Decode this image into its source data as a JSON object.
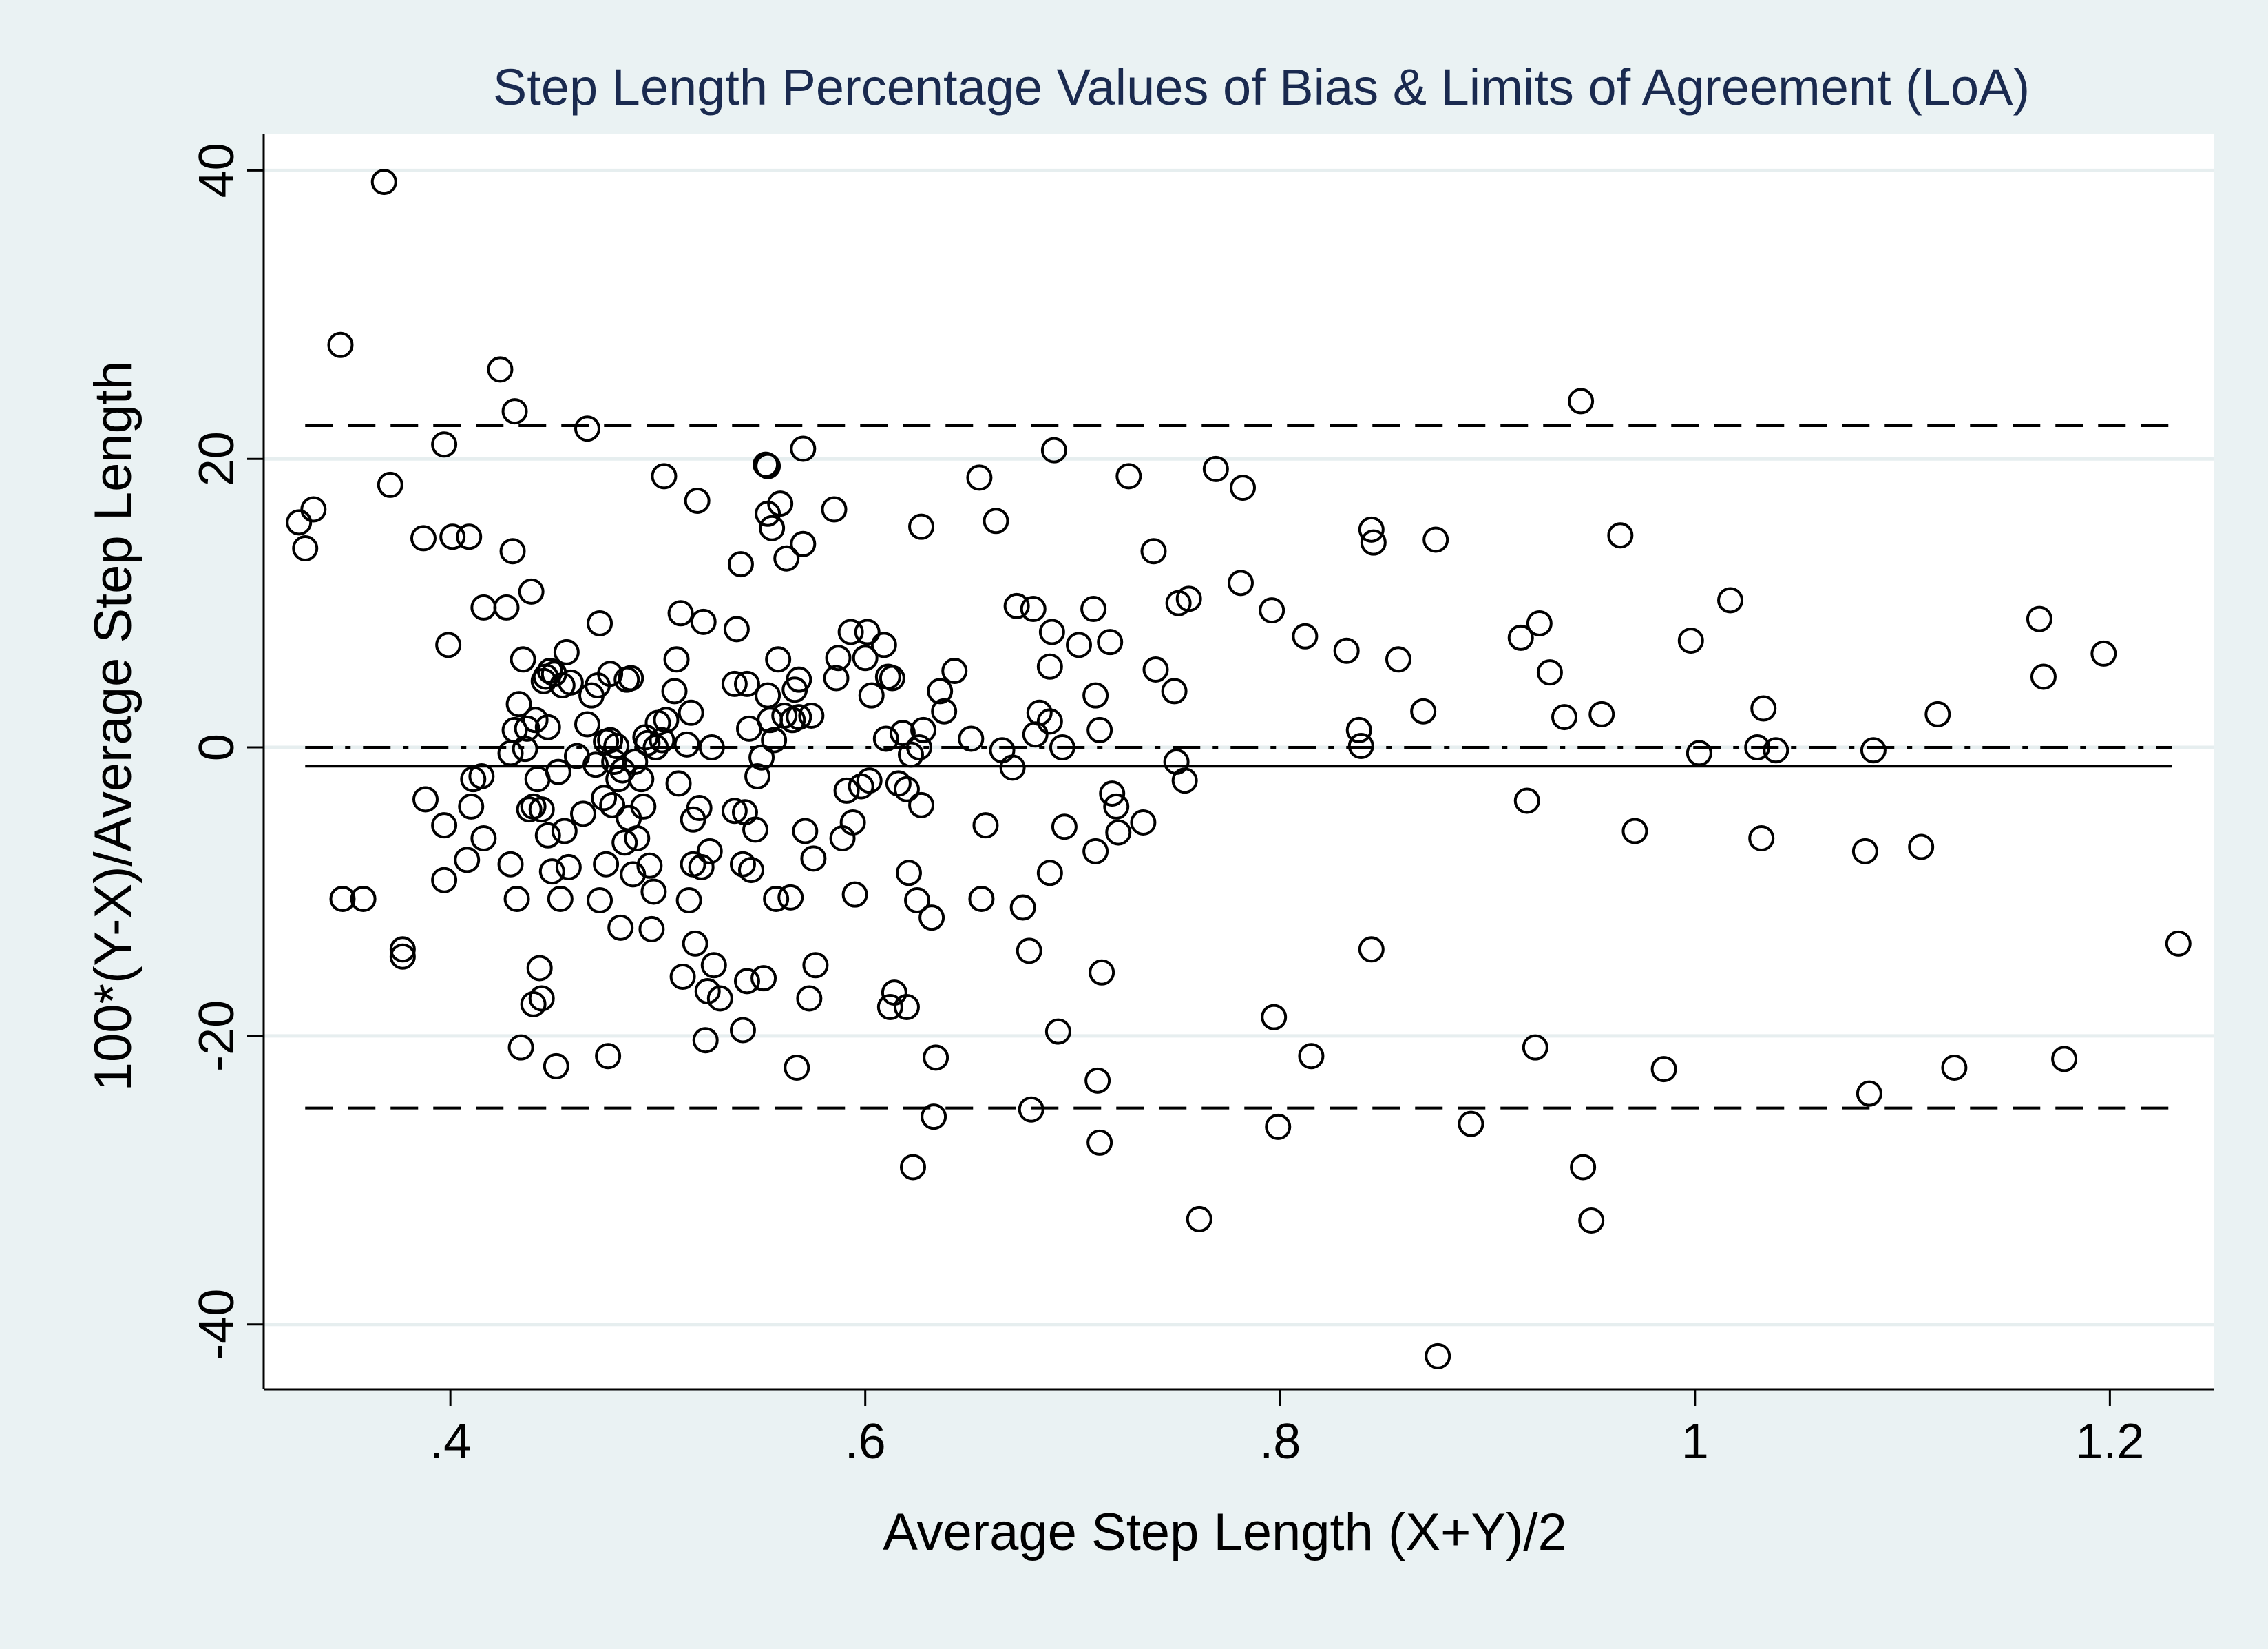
{
  "colors": {
    "background": "#eaf2f3",
    "plot_background": "#ffffff",
    "gridline": "#e6eeef",
    "title": "#1a2a4f",
    "marker": "#000000"
  },
  "chart_data": {
    "type": "scatter",
    "title": "Step Length Percentage Values of Bias & Limits of Agreement (LoA)",
    "xlabel": "Average Step Length (X+Y)/2",
    "ylabel": "100*(Y-X)/Average Step Length",
    "xlim": [
      0.31,
      1.25
    ],
    "ylim": [
      -44.5,
      42.5
    ],
    "x_ticks": [
      {
        "value": 0.4,
        "label": ".4"
      },
      {
        "value": 0.6,
        "label": ".6"
      },
      {
        "value": 0.8,
        "label": ".8"
      },
      {
        "value": 1.0,
        "label": "1"
      },
      {
        "value": 1.2,
        "label": "1.2"
      }
    ],
    "y_ticks": [
      {
        "value": 40,
        "label": "40"
      },
      {
        "value": 20,
        "label": "20"
      },
      {
        "value": 0,
        "label": "0"
      },
      {
        "value": -20,
        "label": "-20"
      },
      {
        "value": -40,
        "label": "-40"
      }
    ],
    "grid": true,
    "marker": "hollow-circle",
    "reference_lines": [
      {
        "kind": "upper-loa",
        "style": "dashed",
        "y": 22.3,
        "x_range": [
          0.33,
          1.23
        ]
      },
      {
        "kind": "zero",
        "style": "dash-dot",
        "y": 0,
        "x_range": [
          0.33,
          1.23
        ]
      },
      {
        "kind": "bias",
        "style": "solid",
        "y": -1.3,
        "x_range": [
          0.33,
          1.23
        ]
      },
      {
        "kind": "lower-loa",
        "style": "dashed",
        "y": -25,
        "x_range": [
          0.33,
          1.23
        ]
      }
    ],
    "points": [
      [
        0.327,
        15.6
      ],
      [
        0.33,
        13.8
      ],
      [
        0.334,
        16.5
      ],
      [
        0.347,
        27.9
      ],
      [
        0.348,
        -10.5
      ],
      [
        0.358,
        -10.5
      ],
      [
        0.368,
        39.2
      ],
      [
        0.371,
        18.2
      ],
      [
        0.377,
        -14.5
      ],
      [
        0.377,
        -14.0
      ],
      [
        0.387,
        14.5
      ],
      [
        0.388,
        -3.6
      ],
      [
        0.397,
        21.0
      ],
      [
        0.397,
        -5.4
      ],
      [
        0.397,
        -9.2
      ],
      [
        0.399,
        7.1
      ],
      [
        0.401,
        14.6
      ],
      [
        0.408,
        -7.8
      ],
      [
        0.409,
        14.6
      ],
      [
        0.41,
        -4.1
      ],
      [
        0.411,
        -2.2
      ],
      [
        0.415,
        -2.0
      ],
      [
        0.416,
        -6.3
      ],
      [
        0.416,
        9.7
      ],
      [
        0.424,
        26.2
      ],
      [
        0.427,
        9.7
      ],
      [
        0.429,
        -0.4
      ],
      [
        0.429,
        -8.1
      ],
      [
        0.43,
        13.6
      ],
      [
        0.431,
        23.3
      ],
      [
        0.431,
        1.2
      ],
      [
        0.432,
        -10.5
      ],
      [
        0.433,
        3.0
      ],
      [
        0.434,
        -20.8
      ],
      [
        0.435,
        6.1
      ],
      [
        0.436,
        -0.1
      ],
      [
        0.437,
        1.3
      ],
      [
        0.438,
        -4.3
      ],
      [
        0.439,
        10.8
      ],
      [
        0.44,
        -17.8
      ],
      [
        0.44,
        -4.1
      ],
      [
        0.441,
        1.9
      ],
      [
        0.442,
        -2.2
      ],
      [
        0.443,
        -15.3
      ],
      [
        0.444,
        -17.4
      ],
      [
        0.444,
        -4.3
      ],
      [
        0.445,
        4.6
      ],
      [
        0.446,
        4.9
      ],
      [
        0.447,
        1.4
      ],
      [
        0.447,
        -6.1
      ],
      [
        0.448,
        5.3
      ],
      [
        0.449,
        -8.6
      ],
      [
        0.45,
        5.1
      ],
      [
        0.451,
        -22.1
      ],
      [
        0.452,
        -1.7
      ],
      [
        0.453,
        -10.5
      ],
      [
        0.454,
        4.3
      ],
      [
        0.455,
        -5.8
      ],
      [
        0.456,
        6.6
      ],
      [
        0.457,
        -8.3
      ],
      [
        0.458,
        4.5
      ],
      [
        0.461,
        -0.6
      ],
      [
        0.464,
        -4.6
      ],
      [
        0.466,
        22.1
      ],
      [
        0.466,
        1.6
      ],
      [
        0.468,
        3.6
      ],
      [
        0.47,
        -1.2
      ],
      [
        0.471,
        4.3
      ],
      [
        0.472,
        -10.6
      ],
      [
        0.472,
        8.6
      ],
      [
        0.474,
        -3.5
      ],
      [
        0.475,
        0.4
      ],
      [
        0.475,
        -8.1
      ],
      [
        0.476,
        -21.4
      ],
      [
        0.477,
        5.1
      ],
      [
        0.477,
        0.5
      ],
      [
        0.478,
        -4.0
      ],
      [
        0.479,
        -1.0
      ],
      [
        0.48,
        0.1
      ],
      [
        0.481,
        -2.2
      ],
      [
        0.482,
        -12.5
      ],
      [
        0.483,
        -1.6
      ],
      [
        0.484,
        -6.6
      ],
      [
        0.485,
        4.7
      ],
      [
        0.486,
        -4.9
      ],
      [
        0.487,
        4.8
      ],
      [
        0.488,
        -8.8
      ],
      [
        0.489,
        -1.0
      ],
      [
        0.49,
        -6.3
      ],
      [
        0.492,
        -2.2
      ],
      [
        0.493,
        -4.1
      ],
      [
        0.494,
        0.7
      ],
      [
        0.495,
        0.3
      ],
      [
        0.496,
        -8.2
      ],
      [
        0.497,
        -12.6
      ],
      [
        0.498,
        -10.0
      ],
      [
        0.499,
        0.0
      ],
      [
        0.5,
        1.7
      ],
      [
        0.502,
        0.5
      ],
      [
        0.503,
        18.8
      ],
      [
        0.504,
        1.9
      ],
      [
        0.508,
        3.9
      ],
      [
        0.509,
        6.1
      ],
      [
        0.51,
        -2.5
      ],
      [
        0.511,
        9.3
      ],
      [
        0.512,
        -15.9
      ],
      [
        0.514,
        0.2
      ],
      [
        0.515,
        -10.6
      ],
      [
        0.516,
        2.4
      ],
      [
        0.517,
        -5.0
      ],
      [
        0.517,
        -8.1
      ],
      [
        0.518,
        -13.6
      ],
      [
        0.519,
        17.1
      ],
      [
        0.52,
        -4.2
      ],
      [
        0.521,
        -8.3
      ],
      [
        0.522,
        8.7
      ],
      [
        0.523,
        -20.3
      ],
      [
        0.524,
        -16.9
      ],
      [
        0.525,
        -7.2
      ],
      [
        0.526,
        0.0
      ],
      [
        0.527,
        -15.1
      ],
      [
        0.53,
        -17.4
      ],
      [
        0.537,
        -4.4
      ],
      [
        0.537,
        4.4
      ],
      [
        0.538,
        8.2
      ],
      [
        0.54,
        12.7
      ],
      [
        0.541,
        -19.6
      ],
      [
        0.541,
        -8.1
      ],
      [
        0.542,
        -4.5
      ],
      [
        0.543,
        4.4
      ],
      [
        0.543,
        -16.2
      ],
      [
        0.544,
        1.3
      ],
      [
        0.545,
        -8.5
      ],
      [
        0.547,
        -5.7
      ],
      [
        0.548,
        -2.0
      ],
      [
        0.55,
        -0.7
      ],
      [
        0.551,
        -16.0
      ],
      [
        0.552,
        19.6
      ],
      [
        0.553,
        16.2
      ],
      [
        0.553,
        19.5
      ],
      [
        0.553,
        3.6
      ],
      [
        0.554,
        1.9
      ],
      [
        0.555,
        15.2
      ],
      [
        0.556,
        0.5
      ],
      [
        0.557,
        -10.5
      ],
      [
        0.558,
        6.1
      ],
      [
        0.559,
        16.9
      ],
      [
        0.561,
        2.2
      ],
      [
        0.562,
        13.1
      ],
      [
        0.564,
        -10.4
      ],
      [
        0.565,
        1.9
      ],
      [
        0.566,
        4.0
      ],
      [
        0.567,
        -22.2
      ],
      [
        0.568,
        4.7
      ],
      [
        0.568,
        2.1
      ],
      [
        0.57,
        20.7
      ],
      [
        0.57,
        14.1
      ],
      [
        0.571,
        -5.8
      ],
      [
        0.573,
        -17.4
      ],
      [
        0.574,
        2.2
      ],
      [
        0.575,
        -7.7
      ],
      [
        0.576,
        -15.1
      ],
      [
        0.585,
        16.5
      ],
      [
        0.586,
        4.8
      ],
      [
        0.587,
        6.2
      ],
      [
        0.589,
        -6.3
      ],
      [
        0.591,
        -3.0
      ],
      [
        0.593,
        8.0
      ],
      [
        0.594,
        -5.2
      ],
      [
        0.595,
        -10.2
      ],
      [
        0.598,
        -2.7
      ],
      [
        0.6,
        6.2
      ],
      [
        0.601,
        8.0
      ],
      [
        0.602,
        -2.3
      ],
      [
        0.603,
        3.6
      ],
      [
        0.609,
        7.1
      ],
      [
        0.61,
        0.6
      ],
      [
        0.611,
        4.9
      ],
      [
        0.612,
        -18.0
      ],
      [
        0.613,
        4.8
      ],
      [
        0.614,
        -17.0
      ],
      [
        0.616,
        -2.5
      ],
      [
        0.618,
        1.0
      ],
      [
        0.62,
        -2.9
      ],
      [
        0.62,
        -18.0
      ],
      [
        0.621,
        -8.7
      ],
      [
        0.622,
        -0.5
      ],
      [
        0.623,
        -29.1
      ],
      [
        0.625,
        -10.6
      ],
      [
        0.626,
        0.0
      ],
      [
        0.627,
        15.3
      ],
      [
        0.627,
        -4.0
      ],
      [
        0.628,
        1.2
      ],
      [
        0.632,
        -11.8
      ],
      [
        0.633,
        -25.6
      ],
      [
        0.634,
        -21.5
      ],
      [
        0.636,
        3.9
      ],
      [
        0.638,
        2.5
      ],
      [
        0.643,
        5.3
      ],
      [
        0.651,
        0.6
      ],
      [
        0.655,
        18.7
      ],
      [
        0.656,
        -10.5
      ],
      [
        0.658,
        -5.4
      ],
      [
        0.663,
        15.7
      ],
      [
        0.666,
        -0.2
      ],
      [
        0.671,
        -1.4
      ],
      [
        0.673,
        9.8
      ],
      [
        0.676,
        -11.1
      ],
      [
        0.679,
        -14.1
      ],
      [
        0.68,
        -25.1
      ],
      [
        0.681,
        9.6
      ],
      [
        0.682,
        0.9
      ],
      [
        0.684,
        2.4
      ],
      [
        0.689,
        5.6
      ],
      [
        0.689,
        -8.7
      ],
      [
        0.689,
        1.8
      ],
      [
        0.69,
        8.0
      ],
      [
        0.691,
        20.6
      ],
      [
        0.693,
        -19.7
      ],
      [
        0.695,
        0.0
      ],
      [
        0.696,
        -5.5
      ],
      [
        0.703,
        7.1
      ],
      [
        0.71,
        9.6
      ],
      [
        0.711,
        3.6
      ],
      [
        0.711,
        -7.2
      ],
      [
        0.712,
        -23.1
      ],
      [
        0.713,
        1.2
      ],
      [
        0.713,
        -27.4
      ],
      [
        0.714,
        -15.6
      ],
      [
        0.718,
        7.3
      ],
      [
        0.719,
        -3.2
      ],
      [
        0.721,
        -4.1
      ],
      [
        0.722,
        -5.9
      ],
      [
        0.727,
        18.8
      ],
      [
        0.734,
        -5.2
      ],
      [
        0.739,
        13.6
      ],
      [
        0.74,
        5.4
      ],
      [
        0.749,
        3.9
      ],
      [
        0.75,
        -1.0
      ],
      [
        0.751,
        10.0
      ],
      [
        0.754,
        -2.3
      ],
      [
        0.756,
        10.3
      ],
      [
        0.761,
        -32.7
      ],
      [
        0.769,
        19.3
      ],
      [
        0.781,
        11.4
      ],
      [
        0.782,
        18.0
      ],
      [
        0.796,
        9.5
      ],
      [
        0.797,
        -18.7
      ],
      [
        0.799,
        -26.3
      ],
      [
        0.812,
        7.7
      ],
      [
        0.815,
        -21.4
      ],
      [
        0.832,
        6.7
      ],
      [
        0.838,
        1.2
      ],
      [
        0.839,
        0.1
      ],
      [
        0.844,
        15.1
      ],
      [
        0.844,
        -14.0
      ],
      [
        0.845,
        14.2
      ],
      [
        0.857,
        6.1
      ],
      [
        0.869,
        2.5
      ],
      [
        0.875,
        14.4
      ],
      [
        0.876,
        -42.2
      ],
      [
        0.892,
        -26.1
      ],
      [
        0.916,
        7.6
      ],
      [
        0.919,
        -3.7
      ],
      [
        0.923,
        -20.8
      ],
      [
        0.925,
        8.6
      ],
      [
        0.93,
        5.2
      ],
      [
        0.937,
        2.1
      ],
      [
        0.945,
        24.0
      ],
      [
        0.946,
        -29.1
      ],
      [
        0.95,
        -32.8
      ],
      [
        0.955,
        2.3
      ],
      [
        0.964,
        14.7
      ],
      [
        0.971,
        -5.8
      ],
      [
        0.985,
        -22.3
      ],
      [
        0.998,
        7.4
      ],
      [
        1.002,
        -0.4
      ],
      [
        1.017,
        10.2
      ],
      [
        1.03,
        0.0
      ],
      [
        1.032,
        -6.3
      ],
      [
        1.033,
        2.7
      ],
      [
        1.039,
        -0.2
      ],
      [
        1.082,
        -7.2
      ],
      [
        1.084,
        -24.0
      ],
      [
        1.086,
        -0.2
      ],
      [
        1.109,
        -6.9
      ],
      [
        1.117,
        2.3
      ],
      [
        1.125,
        -22.2
      ],
      [
        1.166,
        8.9
      ],
      [
        1.168,
        4.9
      ],
      [
        1.178,
        -21.6
      ],
      [
        1.197,
        6.5
      ],
      [
        1.233,
        -13.6
      ]
    ]
  }
}
